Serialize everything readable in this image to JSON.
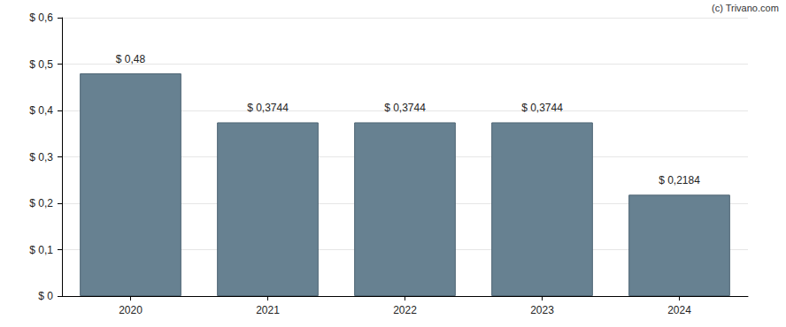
{
  "chart_data": {
    "type": "bar",
    "annotation": "(c) Trivano.com",
    "categories": [
      "2020",
      "2021",
      "2022",
      "2023",
      "2024"
    ],
    "values": [
      0.48,
      0.3744,
      0.3744,
      0.3744,
      0.2184
    ],
    "value_labels": [
      "$ 0,48",
      "$ 0,3744",
      "$ 0,3744",
      "$ 0,3744",
      "$ 0,2184"
    ],
    "data_labels": true,
    "color": "#678191",
    "ylim": [
      0,
      0.6
    ],
    "yticks": [
      {
        "value": 0,
        "label": "$ 0"
      },
      {
        "value": 0.1,
        "label": "$ 0,1"
      },
      {
        "value": 0.2,
        "label": "$ 0,2"
      },
      {
        "value": 0.3,
        "label": "$ 0,3"
      },
      {
        "value": 0.4,
        "label": "$ 0,4"
      },
      {
        "value": 0.5,
        "label": "$ 0,5"
      },
      {
        "value": 0.6,
        "label": "$ 0,6"
      }
    ],
    "grid": true
  }
}
